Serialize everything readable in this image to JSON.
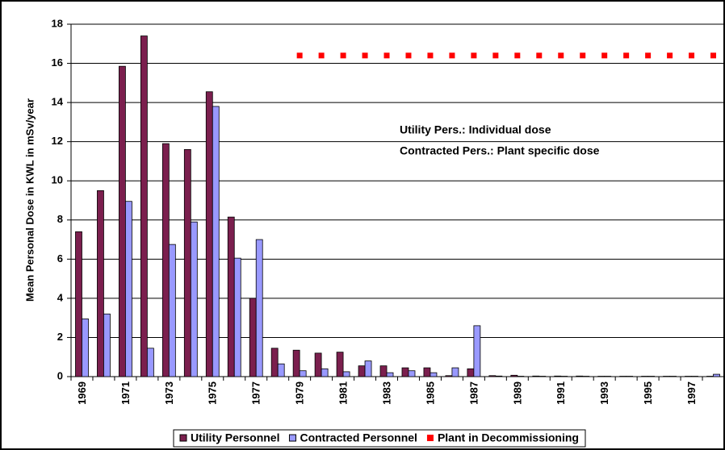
{
  "chart_data": {
    "type": "bar",
    "y_label": "Mean Personal Dose in KWL in mSv/year",
    "annotations": [
      "Utility Pers.: Individual dose",
      "Contracted Pers.: Plant specific dose"
    ],
    "categories": [
      "1969",
      null,
      "1971",
      null,
      "1973",
      null,
      "1975",
      null,
      "1977",
      null,
      "1979",
      null,
      "1981",
      null,
      "1983",
      null,
      "1985",
      null,
      "1987",
      null,
      "1989",
      null,
      "1991",
      null,
      "1993",
      null,
      "1995",
      null,
      "1997",
      null
    ],
    "series": [
      {
        "name": "Utility Personnel",
        "color": "#7b1f4e",
        "mode": "bars",
        "values": [
          7.4,
          9.5,
          15.85,
          17.4,
          11.9,
          11.6,
          14.55,
          8.15,
          4.0,
          1.45,
          1.35,
          1.2,
          1.25,
          0.55,
          0.55,
          0.45,
          0.45,
          0.05,
          0.4,
          0.05,
          0.07,
          0.03,
          0.03,
          0.03,
          0.02,
          0.02,
          0.02,
          0.02,
          0.02,
          0.02
        ]
      },
      {
        "name": "Contracted Personnel",
        "color": "#9999ff",
        "mode": "bars",
        "values": [
          2.95,
          3.2,
          8.95,
          1.45,
          6.75,
          7.9,
          13.8,
          6.05,
          7.0,
          0.65,
          0.3,
          0.4,
          0.25,
          0.8,
          0.2,
          0.3,
          0.2,
          0.45,
          2.6,
          0.03,
          0.02,
          0.02,
          0.02,
          0.02,
          0.02,
          0.02,
          0.02,
          0.02,
          0.02,
          0.12
        ]
      },
      {
        "name": "Plant in Decommissioning",
        "color": "#ff0000",
        "mode": "markers",
        "values": [
          null,
          null,
          null,
          null,
          null,
          null,
          null,
          null,
          null,
          null,
          16.4,
          16.4,
          16.4,
          16.4,
          16.4,
          16.4,
          16.4,
          16.4,
          16.4,
          16.4,
          16.4,
          16.4,
          16.4,
          16.4,
          16.4,
          16.4,
          16.4,
          16.4,
          16.4,
          16.4
        ]
      }
    ],
    "ylim": [
      0,
      18
    ],
    "yticks": [
      0,
      2,
      4,
      6,
      8,
      10,
      12,
      14,
      16,
      18
    ],
    "grid": true,
    "legend": "bottom"
  }
}
